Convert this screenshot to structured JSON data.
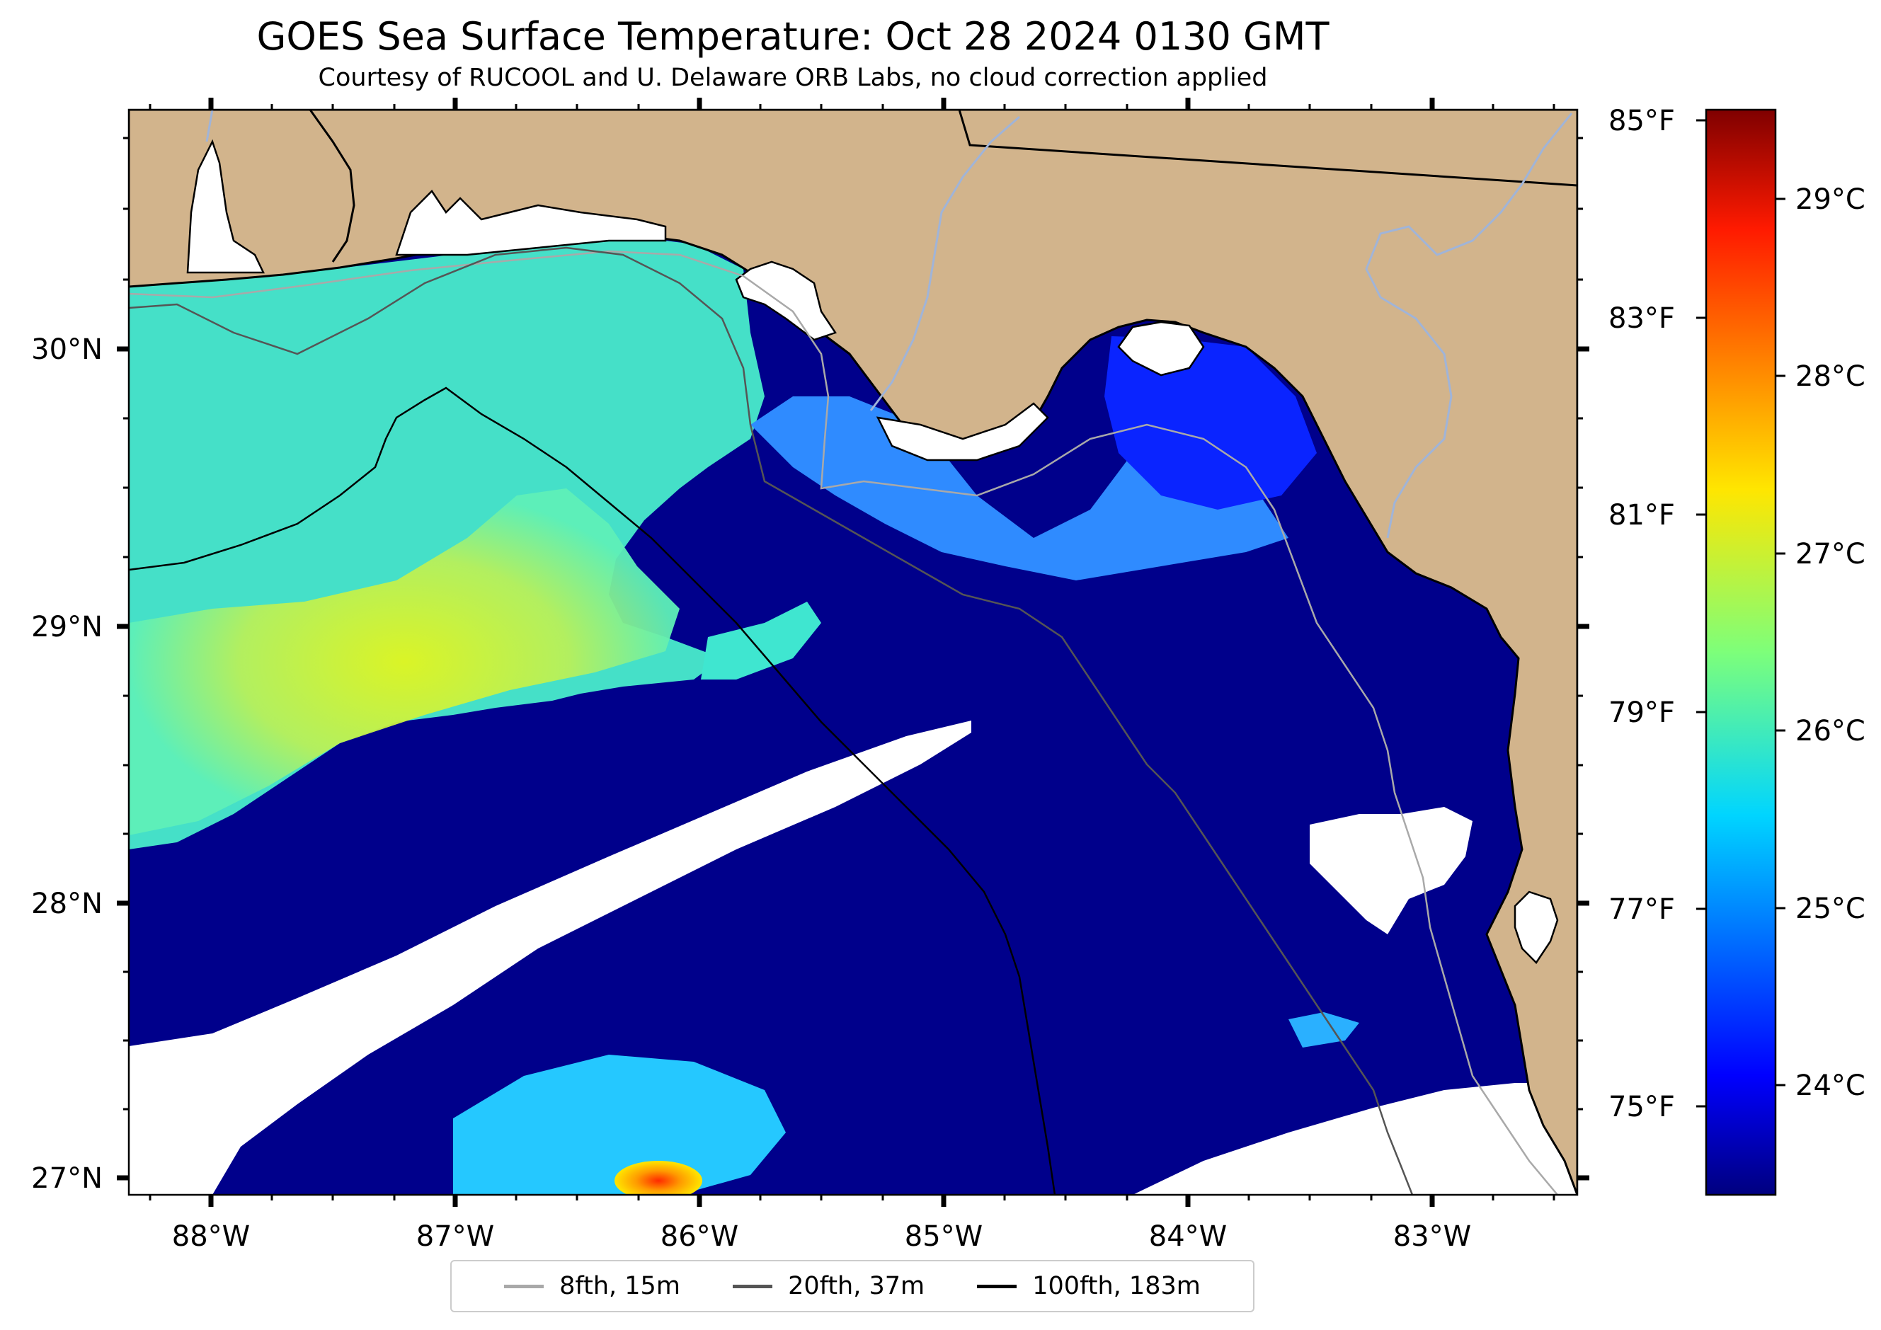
{
  "title": "GOES Sea Surface Temperature: Oct 28 2024 0130 GMT",
  "subtitle": "Courtesy of RUCOOL and U. Delaware ORB Labs, no cloud correction applied",
  "axes": {
    "lon_labels": [
      "88°W",
      "87°W",
      "86°W",
      "85°W",
      "84°W",
      "83°W"
    ],
    "lat_labels": [
      "30°N",
      "29°N",
      "28°N",
      "27°N"
    ]
  },
  "colorbar": {
    "fahrenheit_labels": [
      "85°F",
      "83°F",
      "81°F",
      "79°F",
      "77°F",
      "75°F"
    ],
    "celsius_labels": [
      "29°C",
      "28°C",
      "27°C",
      "26°C",
      "25°C",
      "24°C"
    ],
    "colormap": "jet",
    "range_c": [
      23.4,
      29.5
    ]
  },
  "legend": [
    {
      "label": "8fth, 15m",
      "color": "#a9a9a9"
    },
    {
      "label": "20fth, 37m",
      "color": "#555555"
    },
    {
      "label": "100fth, 183m",
      "color": "#000000"
    }
  ],
  "colors": {
    "land": "#d2b48c",
    "cold_water": "#00008b",
    "no_data": "#ffffff",
    "rivers": "#a0b4d8"
  }
}
